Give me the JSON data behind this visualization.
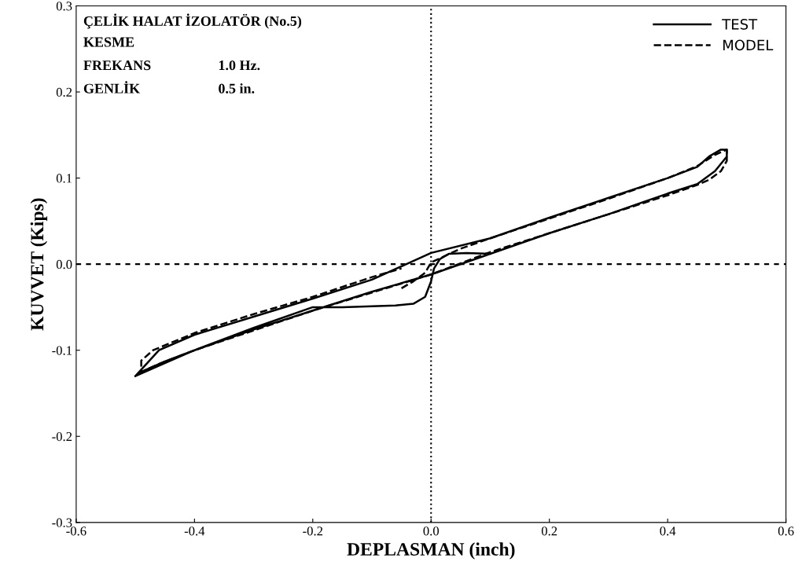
{
  "chart_data": {
    "type": "line",
    "xlabel": "DEPLASMAN (inch)",
    "ylabel": "KUVVET (Kips)",
    "annotations": [
      "ÇELİK HALAT İZOLATÖR (No.5)",
      "KESME",
      "FREKANS\t1.0 Hz.",
      "GENLİK\t0.5 in."
    ],
    "xlim": [
      -0.6,
      0.6
    ],
    "xticks": [
      -0.6,
      -0.4,
      -0.2,
      {
        "value": 0,
        "label": "0.0"
      },
      0.2,
      0.4,
      0.6
    ],
    "ylim": [
      -0.3,
      0.3
    ],
    "yticks": [
      -0.3,
      -0.2,
      -0.1,
      {
        "value": 0,
        "label": "0.0"
      },
      0.1,
      0.2,
      0.3
    ],
    "grid": false,
    "legend": "top right",
    "marker": "none",
    "ref_lines": [
      {
        "axis": "x",
        "value": 0,
        "line_style": "dotted",
        "color": "#000000"
      },
      {
        "axis": "y",
        "value": 0,
        "line_style": "dashed",
        "color": "#000000"
      }
    ],
    "series": [
      {
        "name": "TEST",
        "color": "#000000",
        "line_style": "solid",
        "x": [
          0.1,
          0.06,
          0.03,
          0.015,
          0.005,
          0.0,
          -0.01,
          -0.03,
          -0.06,
          -0.1,
          -0.15,
          -0.2,
          -0.3,
          -0.4,
          -0.45,
          -0.48,
          -0.5,
          -0.48,
          -0.46,
          -0.4,
          -0.3,
          -0.2,
          -0.1,
          0.0,
          0.1,
          0.2,
          0.3,
          0.4,
          0.45,
          0.47,
          0.49,
          0.5,
          0.5,
          0.48,
          0.45,
          0.4,
          0.3,
          0.2,
          0.1,
          0.0,
          -0.1,
          -0.2,
          -0.3,
          -0.4,
          -0.46,
          -0.5
        ],
        "values": [
          0.012,
          0.013,
          0.012,
          0.006,
          -0.005,
          -0.02,
          -0.038,
          -0.046,
          -0.048,
          -0.049,
          -0.05,
          -0.05,
          -0.074,
          -0.1,
          -0.113,
          -0.122,
          -0.13,
          -0.115,
          -0.1,
          -0.082,
          -0.061,
          -0.04,
          -0.018,
          0.013,
          0.03,
          0.054,
          0.077,
          0.1,
          0.113,
          0.125,
          0.133,
          0.133,
          0.125,
          0.108,
          0.093,
          0.082,
          0.058,
          0.036,
          0.012,
          -0.012,
          -0.032,
          -0.054,
          -0.076,
          -0.1,
          -0.118,
          -0.13
        ]
      },
      {
        "name": "MODEL",
        "color": "#000000",
        "line_style": "dashed",
        "x": [
          -0.05,
          -0.03,
          -0.01,
          0.0,
          0.05,
          0.1,
          0.2,
          0.3,
          0.4,
          0.45,
          0.48,
          0.5,
          0.5,
          0.49,
          0.47,
          0.45,
          0.4,
          0.3,
          0.2,
          0.1,
          0.0,
          -0.1,
          -0.2,
          -0.3,
          -0.4,
          -0.46,
          -0.49,
          -0.49,
          -0.47,
          -0.4,
          -0.3,
          -0.2,
          -0.1,
          -0.05
        ],
        "values": [
          -0.028,
          -0.02,
          -0.01,
          0.002,
          0.018,
          0.03,
          0.053,
          0.076,
          0.1,
          0.114,
          0.127,
          0.133,
          0.12,
          0.108,
          0.098,
          0.092,
          0.08,
          0.058,
          0.036,
          0.014,
          -0.012,
          -0.033,
          -0.054,
          -0.077,
          -0.1,
          -0.116,
          -0.125,
          -0.112,
          -0.1,
          -0.08,
          -0.058,
          -0.038,
          -0.015,
          -0.005
        ]
      }
    ]
  }
}
